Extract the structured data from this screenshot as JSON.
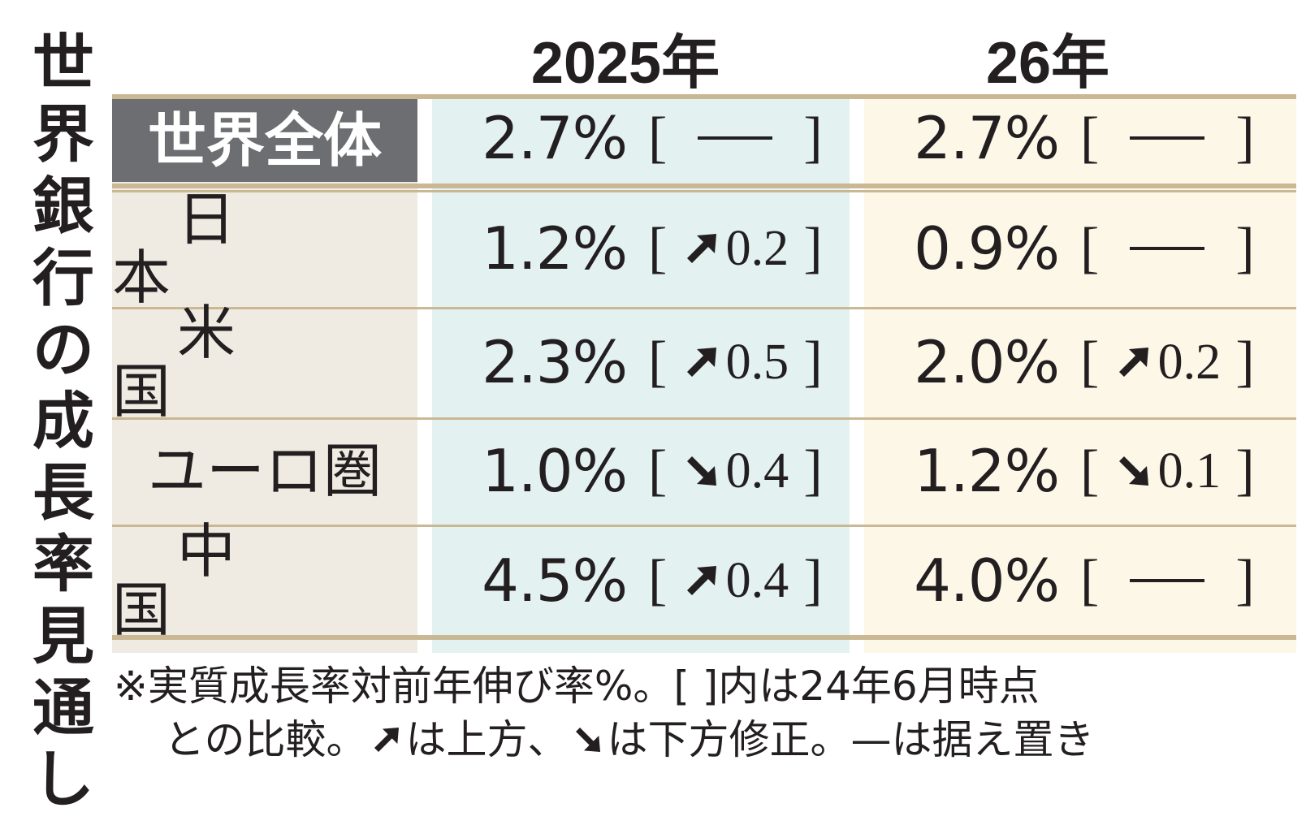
{
  "title": "世界銀行の成長率見通し",
  "title_chars": [
    "世",
    "界",
    "銀",
    "行",
    "の",
    "成",
    "長",
    "率",
    "見",
    "通",
    "し"
  ],
  "columns": [
    "2025年",
    "26年"
  ],
  "rows": [
    {
      "label": "世界全体",
      "v2025": "2.7%",
      "c2025": {
        "dir": "none",
        "text": "—"
      },
      "v2026": "2.7%",
      "c2026": {
        "dir": "none",
        "text": "—"
      }
    },
    {
      "label": "日本",
      "v2025": "1.2%",
      "c2025": {
        "dir": "up",
        "text": "0.2"
      },
      "v2026": "0.9%",
      "c2026": {
        "dir": "none",
        "text": "—"
      }
    },
    {
      "label": "米国",
      "v2025": "2.3%",
      "c2025": {
        "dir": "up",
        "text": "0.5"
      },
      "v2026": "2.0%",
      "c2026": {
        "dir": "up",
        "text": "0.2"
      }
    },
    {
      "label": "ユーロ圏",
      "v2025": "1.0%",
      "c2025": {
        "dir": "down",
        "text": "0.4"
      },
      "v2026": "1.2%",
      "c2026": {
        "dir": "down",
        "text": "0.1"
      }
    },
    {
      "label": "中国",
      "v2025": "4.5%",
      "c2025": {
        "dir": "up",
        "text": "0.4"
      },
      "v2026": "4.0%",
      "c2026": {
        "dir": "none",
        "text": "—"
      }
    }
  ],
  "note": {
    "line1": "※実質成長率対前年伸び率%。[ ]内は24年6月時点",
    "line2_a": "との比較。",
    "line2_b": "は上方、",
    "line2_c": "は下方修正。—は据え置き"
  },
  "colors": {
    "header_label_bg": "#6d6e71",
    "label_bg": "#efeae2",
    "col2025_bg": "#e3f1f1",
    "col2026_bg": "#fdf7e8",
    "rule": "#c9b893",
    "text": "#231f20"
  },
  "chart_data": {
    "type": "table",
    "title": "世界銀行の成長率見通し",
    "columns": [
      "2025年",
      "26年"
    ],
    "rows": [
      "世界全体",
      "日本",
      "米国",
      "ユーロ圏",
      "中国"
    ],
    "series": [
      {
        "name": "2025年",
        "values": [
          2.7,
          1.2,
          2.3,
          1.0,
          4.5
        ],
        "revisions": [
          0,
          0.2,
          0.5,
          -0.4,
          0.4
        ]
      },
      {
        "name": "26年",
        "values": [
          2.7,
          0.9,
          2.0,
          1.2,
          4.0
        ],
        "revisions": [
          0,
          0,
          0.2,
          -0.1,
          0
        ]
      }
    ]
  }
}
